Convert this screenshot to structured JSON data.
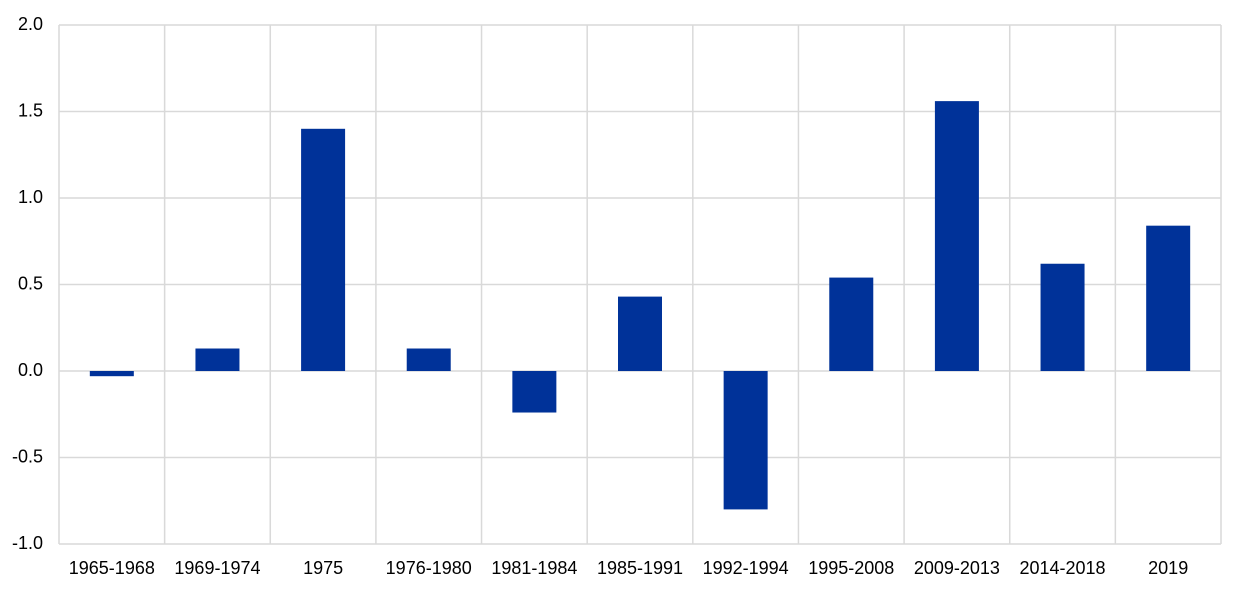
{
  "chart_data": {
    "type": "bar",
    "categories": [
      "1965-1968",
      "1969-1974",
      "1975",
      "1976-1980",
      "1981-1984",
      "1985-1991",
      "1992-1994",
      "1995-2008",
      "2009-2013",
      "2014-2018",
      "2019"
    ],
    "values": [
      -0.03,
      0.13,
      1.4,
      0.13,
      -0.24,
      0.43,
      -0.8,
      0.54,
      1.56,
      0.62,
      0.84
    ],
    "color": "#003299",
    "ylim": [
      -1.0,
      2.0
    ],
    "yticks": [
      {
        "value": -1.0,
        "label": "-1.0"
      },
      -0.5,
      {
        "value": 0,
        "label": "0.0"
      },
      0.5,
      {
        "value": 1.0,
        "label": "1.0"
      },
      1.5,
      {
        "value": 2.0,
        "label": "2.0"
      }
    ],
    "grid": true
  }
}
